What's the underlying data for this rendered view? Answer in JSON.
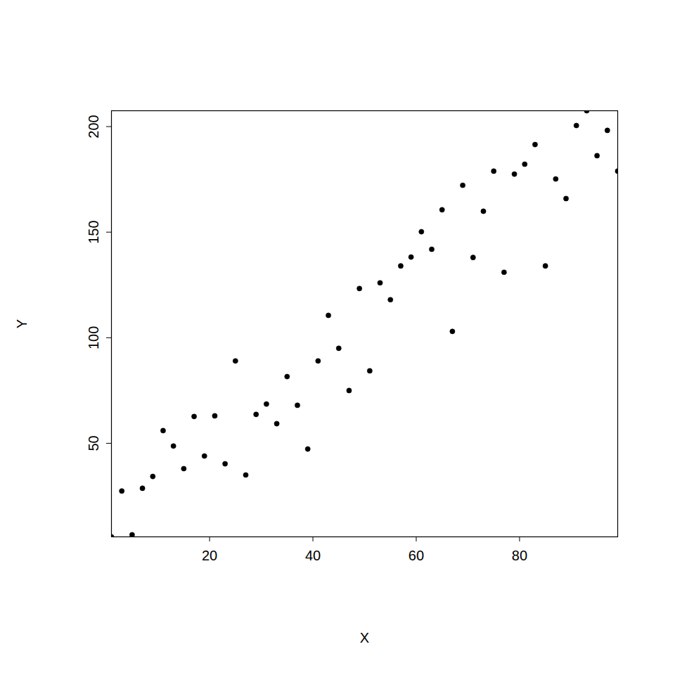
{
  "chart_data": {
    "type": "scatter",
    "xlabel": "X",
    "ylabel": "Y",
    "x": [
      1,
      3,
      5,
      7,
      9,
      11,
      13,
      15,
      17,
      19,
      21,
      23,
      25,
      27,
      29,
      31,
      33,
      35,
      37,
      39,
      41,
      43,
      45,
      47,
      49,
      51,
      53,
      55,
      57,
      59,
      61,
      63,
      65,
      67,
      69,
      71,
      73,
      75,
      77,
      79,
      81,
      83,
      85,
      87,
      89,
      91,
      93,
      95,
      97,
      99
    ],
    "values": [
      5.7,
      27.4,
      6.7,
      28.7,
      34.3,
      56,
      48.7,
      38,
      62.7,
      44,
      63,
      40.3,
      89,
      35,
      63.7,
      68.6,
      59.3,
      81.6,
      68,
      47.3,
      89,
      110.6,
      95,
      75,
      123.3,
      84.3,
      126,
      118,
      134,
      138.2,
      150.2,
      141.9,
      160.6,
      103,
      172.2,
      138,
      159.9,
      178.9,
      131,
      177.5,
      182.2,
      191.5,
      134,
      175.2,
      165.9,
      200.5,
      207.5,
      186.2,
      198.2,
      178.9
    ],
    "color": "#000000",
    "marker": "circle",
    "xlim": [
      1,
      99
    ],
    "xticks": [
      20,
      40,
      60,
      80
    ],
    "ylim": [
      5.7,
      207.5
    ],
    "yticks": [
      50,
      100,
      150,
      200
    ]
  }
}
